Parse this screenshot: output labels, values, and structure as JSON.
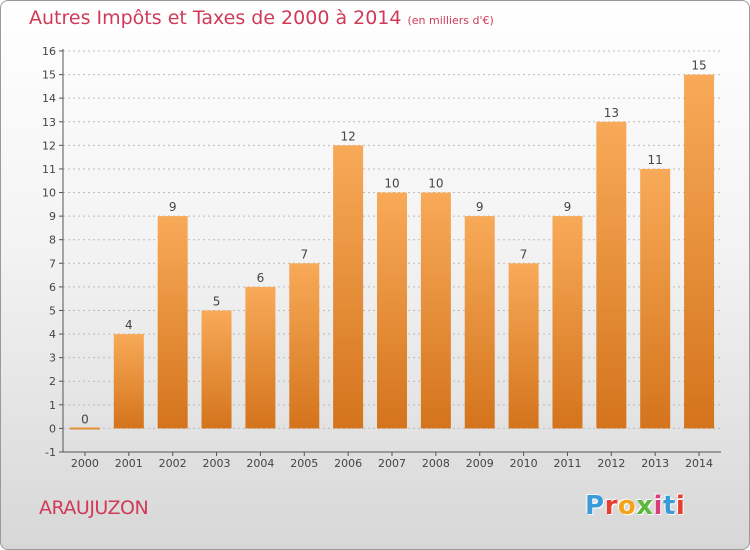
{
  "header": {
    "title": "Autres Impôts et Taxes de 2000 à 2014",
    "unit": "(en milliers d'€)"
  },
  "footer": {
    "place": "ARAUJUZON",
    "logo": "Proxiti",
    "logo_colors": [
      "#3a9bd8",
      "#e5402f",
      "#f4a11c",
      "#5bb83d",
      "#d93e7b",
      "#3a9bd8",
      "#e5402f"
    ]
  },
  "colors": {
    "title": "#d03a57",
    "bar_light": "#f8aa58",
    "bar_dark": "#d4741c",
    "axis": "#555555",
    "grid": "#bbbbbb"
  },
  "chart_data": {
    "type": "bar",
    "categories": [
      "2000",
      "2001",
      "2002",
      "2003",
      "2004",
      "2005",
      "2006",
      "2007",
      "2008",
      "2009",
      "2010",
      "2011",
      "2012",
      "2013",
      "2014"
    ],
    "values": [
      0,
      4,
      9,
      5,
      6,
      7,
      12,
      10,
      10,
      9,
      7,
      9,
      13,
      11,
      15
    ],
    "ylim": [
      -1,
      16
    ],
    "yticks": [
      -1,
      0,
      1,
      2,
      3,
      4,
      5,
      6,
      7,
      8,
      9,
      10,
      11,
      12,
      13,
      14,
      15,
      16
    ],
    "title": "Autres Impôts et Taxes de 2000 à 2014",
    "ylabel": "(en milliers d'€)",
    "xlabel": "",
    "grid": true,
    "data_labels": true
  }
}
